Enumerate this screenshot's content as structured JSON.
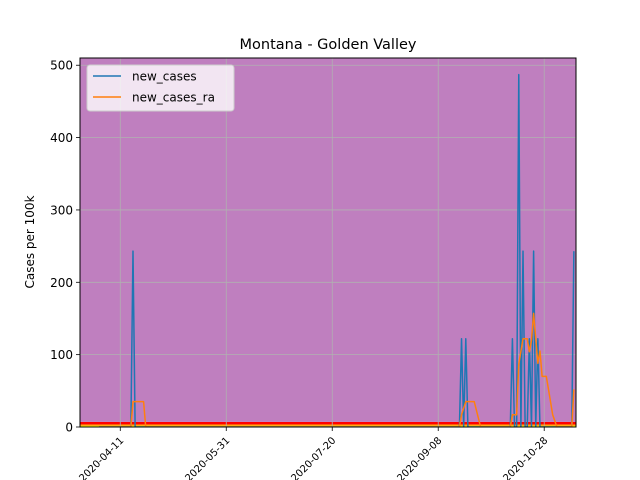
{
  "chart_data": {
    "type": "line",
    "title": "Montana - Golden Valley",
    "xlabel": "",
    "ylabel": "Cases per 100k",
    "x_start": "2020-04-01",
    "x_ticks": [
      "2020-04-11",
      "2020-05-31",
      "2020-07-20",
      "2020-09-08",
      "2020-10-28"
    ],
    "ylim": [
      0,
      510
    ],
    "y_ticks": [
      0,
      100,
      200,
      300,
      400,
      500
    ],
    "grid": true,
    "legend": "top-left",
    "background_bands": [
      {
        "from": 0,
        "to": 1.5,
        "color": "#ffff00"
      },
      {
        "from": 1.5,
        "to": 3.5,
        "color": "#ffa500"
      },
      {
        "from": 3.5,
        "to": 7,
        "color": "#ff0000"
      },
      {
        "from": 7,
        "to": 510,
        "color": "#bf7fbf"
      }
    ],
    "series": [
      {
        "name": "new_cases",
        "color": "#1f77b4",
        "points": [
          [
            "2020-04-01",
            0
          ],
          [
            "2020-04-16",
            0
          ],
          [
            "2020-04-17",
            243
          ],
          [
            "2020-04-18",
            0
          ],
          [
            "2020-09-18",
            0
          ],
          [
            "2020-09-19",
            122
          ],
          [
            "2020-09-20",
            0
          ],
          [
            "2020-09-21",
            122
          ],
          [
            "2020-09-22",
            0
          ],
          [
            "2020-10-12",
            0
          ],
          [
            "2020-10-13",
            122
          ],
          [
            "2020-10-14",
            0
          ],
          [
            "2020-10-15",
            0
          ],
          [
            "2020-10-16",
            487
          ],
          [
            "2020-10-17",
            0
          ],
          [
            "2020-10-18",
            243
          ],
          [
            "2020-10-19",
            0
          ],
          [
            "2020-10-20",
            0
          ],
          [
            "2020-10-21",
            122
          ],
          [
            "2020-10-22",
            0
          ],
          [
            "2020-10-23",
            243
          ],
          [
            "2020-10-24",
            0
          ],
          [
            "2020-10-25",
            122
          ],
          [
            "2020-10-26",
            0
          ],
          [
            "2020-11-10",
            0
          ],
          [
            "2020-11-11",
            243
          ]
        ]
      },
      {
        "name": "new_cases_ra",
        "color": "#ff7f0e",
        "points": [
          [
            "2020-04-01",
            0
          ],
          [
            "2020-04-16",
            0
          ],
          [
            "2020-04-17",
            35
          ],
          [
            "2020-04-22",
            35
          ],
          [
            "2020-04-23",
            0
          ],
          [
            "2020-09-18",
            0
          ],
          [
            "2020-09-19",
            17
          ],
          [
            "2020-09-21",
            35
          ],
          [
            "2020-09-25",
            35
          ],
          [
            "2020-09-28",
            0
          ],
          [
            "2020-10-12",
            0
          ],
          [
            "2020-10-13",
            17
          ],
          [
            "2020-10-15",
            17
          ],
          [
            "2020-10-16",
            87
          ],
          [
            "2020-10-18",
            122
          ],
          [
            "2020-10-20",
            122
          ],
          [
            "2020-10-21",
            104
          ],
          [
            "2020-10-22",
            120
          ],
          [
            "2020-10-23",
            157
          ],
          [
            "2020-10-25",
            88
          ],
          [
            "2020-10-26",
            105
          ],
          [
            "2020-10-27",
            70
          ],
          [
            "2020-10-29",
            70
          ],
          [
            "2020-11-01",
            17
          ],
          [
            "2020-11-03",
            0
          ],
          [
            "2020-11-10",
            0
          ],
          [
            "2020-11-11",
            52
          ]
        ]
      }
    ]
  }
}
